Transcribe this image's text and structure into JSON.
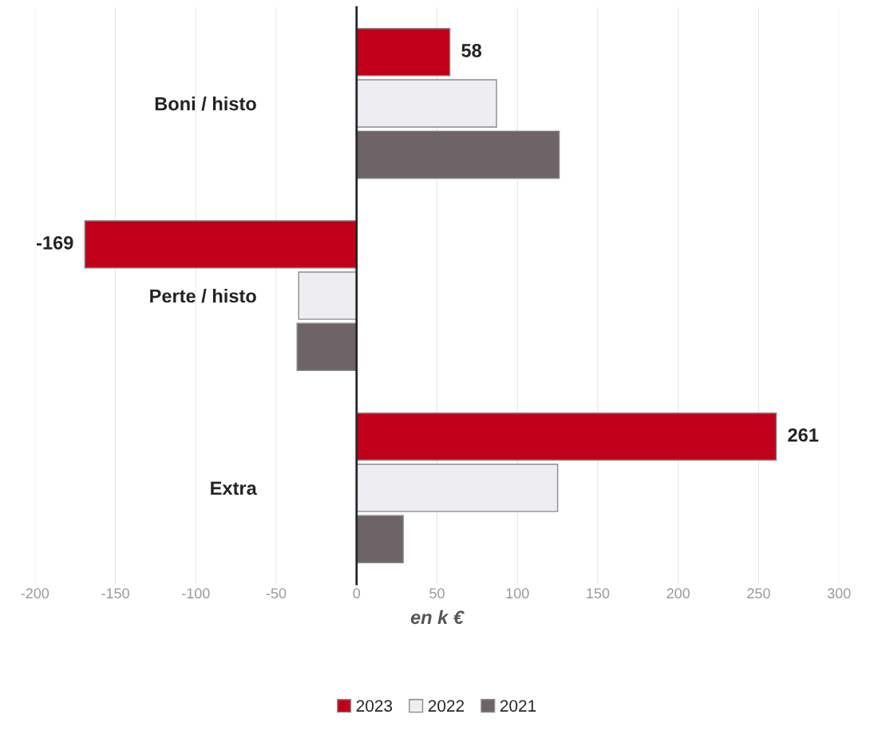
{
  "chart_data": {
    "type": "bar",
    "orientation": "horizontal",
    "xlabel": "en k €",
    "categories": [
      "Boni / histo",
      "Perte / histo",
      "Extra"
    ],
    "series": [
      {
        "name": "2023",
        "color": "#c0001a",
        "values": [
          58,
          -169,
          261
        ],
        "value_labels": [
          "58",
          "-169",
          "261"
        ]
      },
      {
        "name": "2022",
        "color": "#eeeef2",
        "values": [
          87,
          -36,
          125
        ]
      },
      {
        "name": "2021",
        "color": "#6e6468",
        "values": [
          126,
          -37,
          29
        ]
      }
    ],
    "xlim": [
      -200,
      300
    ],
    "xticks": [
      -200,
      -150,
      -100,
      -50,
      0,
      50,
      100,
      150,
      200,
      250,
      300
    ],
    "grid": "x",
    "legend": "bottom"
  }
}
